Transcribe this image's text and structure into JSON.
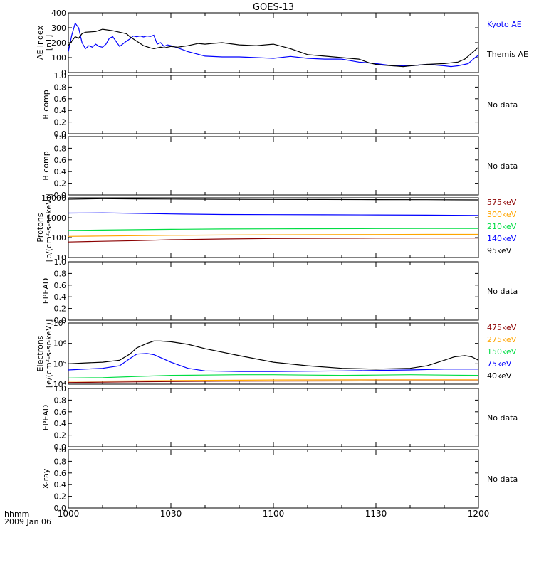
{
  "title": "GOES-13",
  "footer": {
    "line1": "hhmm",
    "line2": "2009 Jan 06"
  },
  "x_ticks": [
    "1000",
    "1030",
    "1100",
    "1130",
    "1200"
  ],
  "no_data_label": "No data",
  "colors": {
    "kyoto": "#0000ff",
    "themis": "#000000",
    "red": "#8b0000",
    "orange": "#ffa500",
    "green": "#00dd44",
    "blue": "#0000ff",
    "black": "#000000"
  },
  "chart_data": [
    {
      "type": "line",
      "ylabel": [
        "AE index",
        "[nT]"
      ],
      "yticks": [
        "400",
        "300",
        "200",
        "100",
        "0"
      ],
      "ylim": [
        0,
        400
      ],
      "xlim_minutes": [
        0,
        120
      ],
      "legend": [
        {
          "label": "Kyoto AE",
          "color": "#0000ff"
        },
        {
          "label": "Themis AE",
          "color": "#000000"
        }
      ],
      "series": [
        {
          "name": "Kyoto AE",
          "color": "#0000ff",
          "x": [
            0,
            1,
            2,
            3,
            4,
            5,
            6,
            7,
            8,
            9,
            10,
            11,
            12,
            13,
            15,
            17,
            18,
            19,
            20,
            21,
            22,
            23,
            24,
            25,
            26,
            27,
            28,
            29,
            30,
            32,
            35,
            40,
            45,
            50,
            55,
            60,
            65,
            70,
            75,
            80,
            85,
            90,
            95,
            100,
            105,
            110,
            112,
            114,
            116,
            117,
            118,
            119,
            120
          ],
          "y": [
            140,
            250,
            330,
            300,
            200,
            160,
            180,
            170,
            190,
            175,
            170,
            190,
            230,
            240,
            175,
            210,
            225,
            245,
            240,
            245,
            238,
            245,
            242,
            250,
            190,
            200,
            175,
            185,
            180,
            165,
            140,
            110,
            105,
            105,
            100,
            95,
            108,
            95,
            90,
            90,
            70,
            60,
            45,
            45,
            55,
            45,
            40,
            45,
            55,
            60,
            80,
            100,
            115
          ]
        },
        {
          "name": "Themis AE",
          "color": "#000000",
          "x": [
            0,
            2,
            3,
            4,
            5,
            8,
            10,
            13,
            15,
            17,
            18,
            20,
            22,
            24,
            25,
            27,
            28,
            30,
            32,
            35,
            38,
            40,
            42,
            45,
            50,
            55,
            60,
            65,
            70,
            75,
            80,
            85,
            88,
            90,
            92,
            95,
            98,
            100,
            105,
            110,
            112,
            114,
            116,
            117,
            118,
            120
          ],
          "y": [
            180,
            240,
            230,
            260,
            270,
            275,
            290,
            280,
            270,
            260,
            240,
            210,
            180,
            165,
            160,
            170,
            165,
            175,
            170,
            180,
            195,
            190,
            195,
            200,
            185,
            180,
            190,
            160,
            120,
            110,
            100,
            90,
            65,
            55,
            50,
            45,
            40,
            45,
            55,
            60,
            65,
            70,
            90,
            110,
            130,
            170
          ]
        }
      ]
    },
    {
      "type": "empty",
      "ylabel": [
        "B comp"
      ],
      "yticks": [
        "1.0",
        "0.8",
        "0.6",
        "0.4",
        "0.2",
        "0.0"
      ],
      "ylim": [
        0,
        1
      ],
      "note": "No data"
    },
    {
      "type": "empty",
      "ylabel": [
        "B comp"
      ],
      "yticks": [
        "1.0",
        "0.8",
        "0.6",
        "0.4",
        "0.2",
        "0.0"
      ],
      "ylim": [
        0,
        1
      ],
      "note": "No data"
    },
    {
      "type": "line",
      "log_scale": true,
      "ylabel": [
        "Protons",
        "[p/(cm²-s-sr-keV)]"
      ],
      "yticks": [
        "10000",
        "1000",
        "100",
        "10"
      ],
      "ylim": [
        10,
        10000
      ],
      "xlim_minutes": [
        0,
        120
      ],
      "legend": [
        {
          "label": "575keV",
          "color": "#8b0000"
        },
        {
          "label": "300keV",
          "color": "#ffa500"
        },
        {
          "label": "210keV",
          "color": "#00dd44"
        },
        {
          "label": "140keV",
          "color": "#0000ff"
        },
        {
          "label": "95keV",
          "color": "#000000"
        }
      ],
      "series": [
        {
          "name": "95keV",
          "color": "#000000",
          "x": [
            0,
            10,
            20,
            30,
            45,
            60,
            75,
            90,
            105,
            120
          ],
          "y": [
            8500,
            9000,
            8800,
            8600,
            8400,
            8300,
            8200,
            8100,
            8000,
            7800
          ]
        },
        {
          "name": "140keV",
          "color": "#0000ff",
          "x": [
            0,
            10,
            20,
            30,
            45,
            60,
            75,
            90,
            105,
            120
          ],
          "y": [
            1700,
            1750,
            1650,
            1550,
            1450,
            1420,
            1400,
            1380,
            1350,
            1300
          ]
        },
        {
          "name": "210keV",
          "color": "#00dd44",
          "x": [
            0,
            10,
            20,
            30,
            45,
            60,
            75,
            90,
            105,
            120
          ],
          "y": [
            230,
            240,
            250,
            260,
            270,
            275,
            280,
            285,
            290,
            290
          ]
        },
        {
          "name": "300keV",
          "color": "#ffa500",
          "x": [
            0,
            10,
            20,
            30,
            45,
            60,
            75,
            90,
            105,
            120
          ],
          "y": [
            115,
            120,
            125,
            130,
            135,
            138,
            140,
            142,
            145,
            145
          ]
        },
        {
          "name": "575keV",
          "color": "#8b0000",
          "x": [
            0,
            10,
            20,
            30,
            45,
            60,
            75,
            90,
            105,
            120
          ],
          "y": [
            60,
            65,
            70,
            78,
            85,
            90,
            92,
            94,
            95,
            95
          ]
        }
      ]
    },
    {
      "type": "empty",
      "ylabel": [
        "EPEAD"
      ],
      "yticks": [
        "1.0",
        "0.8",
        "0.6",
        "0.4",
        "0.2",
        "0.0"
      ],
      "ylim": [
        0,
        1
      ],
      "note": "No data"
    },
    {
      "type": "line",
      "log_scale": true,
      "ylabel": [
        "Electrons",
        "[e/(cm²-s-sr-keV)]"
      ],
      "yticks": [
        "10⁷",
        "10⁶",
        "10⁵",
        "10⁴"
      ],
      "ylim": [
        10000,
        10000000
      ],
      "xlim_minutes": [
        0,
        120
      ],
      "legend": [
        {
          "label": "475keV",
          "color": "#8b0000"
        },
        {
          "label": "275keV",
          "color": "#ffa500"
        },
        {
          "label": "150keV",
          "color": "#00dd44"
        },
        {
          "label": "75keV",
          "color": "#0000ff"
        },
        {
          "label": "40keV",
          "color": "#000000"
        }
      ],
      "series": [
        {
          "name": "40keV",
          "color": "#000000",
          "x": [
            0,
            5,
            10,
            15,
            18,
            20,
            23,
            25,
            27,
            30,
            35,
            40,
            50,
            60,
            70,
            80,
            90,
            100,
            105,
            110,
            113,
            116,
            118,
            120
          ],
          "y": [
            100000,
            110000,
            120000,
            150000,
            300000,
            600000,
            1000000,
            1300000,
            1300000,
            1200000,
            900000,
            550000,
            250000,
            120000,
            80000,
            60000,
            55000,
            60000,
            80000,
            150000,
            220000,
            250000,
            220000,
            150000
          ]
        },
        {
          "name": "75keV",
          "color": "#0000ff",
          "x": [
            0,
            5,
            10,
            15,
            18,
            20,
            23,
            25,
            27,
            30,
            35,
            40,
            50,
            60,
            80,
            100,
            110,
            120
          ],
          "y": [
            50000,
            55000,
            60000,
            80000,
            180000,
            300000,
            320000,
            280000,
            200000,
            120000,
            60000,
            45000,
            42000,
            42000,
            45000,
            50000,
            55000,
            55000
          ]
        },
        {
          "name": "150keV",
          "color": "#00dd44",
          "x": [
            0,
            10,
            20,
            30,
            40,
            50,
            60,
            70,
            80,
            90,
            100,
            110,
            120
          ],
          "y": [
            20000,
            21000,
            24000,
            27000,
            28000,
            29000,
            29000,
            28000,
            27000,
            28000,
            29000,
            28000,
            27000
          ]
        },
        {
          "name": "275keV",
          "color": "#ffa500",
          "x": [
            0,
            10,
            20,
            30,
            45,
            60,
            75,
            90,
            105,
            120
          ],
          "y": [
            14000,
            14200,
            14500,
            15000,
            15500,
            16000,
            16200,
            16400,
            16500,
            16500
          ]
        },
        {
          "name": "475keV",
          "color": "#8b0000",
          "x": [
            0,
            10,
            20,
            30,
            45,
            60,
            75,
            90,
            105,
            120
          ],
          "y": [
            12000,
            12500,
            13000,
            13500,
            14000,
            14200,
            14400,
            14500,
            14600,
            14600
          ]
        }
      ]
    },
    {
      "type": "empty",
      "ylabel": [
        "EPEAD"
      ],
      "yticks": [
        "1.0",
        "0.8",
        "0.6",
        "0.4",
        "0.2",
        "0.0"
      ],
      "ylim": [
        0,
        1
      ],
      "note": "No data"
    },
    {
      "type": "empty",
      "ylabel": [
        "X-ray"
      ],
      "yticks": [
        "1.0",
        "0.8",
        "0.6",
        "0.4",
        "0.2",
        "0.0"
      ],
      "ylim": [
        0,
        1
      ],
      "note": "No data"
    }
  ]
}
